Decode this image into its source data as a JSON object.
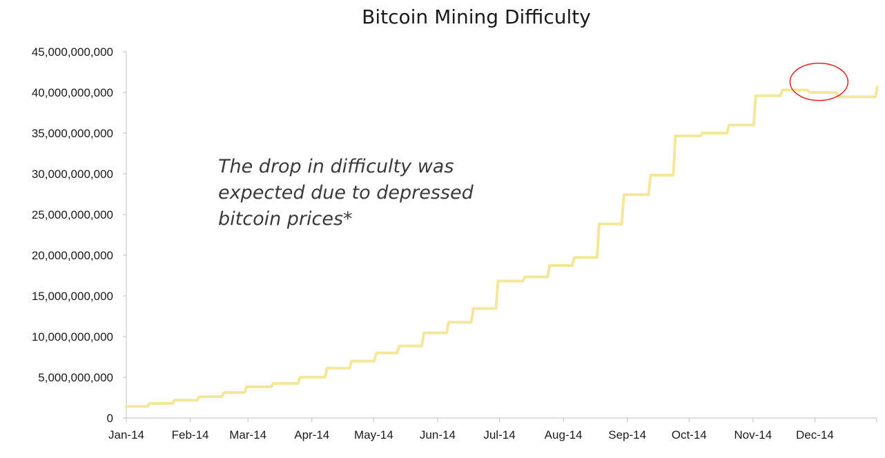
{
  "chart_data": {
    "type": "line",
    "title": "Bitcoin Mining Difficulty",
    "xlabel": "",
    "ylabel": "",
    "x_tick_labels": [
      "Jan-14",
      "Feb-14",
      "Mar-14",
      "Apr-14",
      "May-14",
      "Jun-14",
      "Jul-14",
      "Aug-14",
      "Sep-14",
      "Oct-14",
      "Nov-14",
      "Dec-14"
    ],
    "y_tick_labels": [
      "0",
      "5,000,000,000",
      "10,000,000,000",
      "15,000,000,000",
      "20,000,000,000",
      "25,000,000,000",
      "30,000,000,000",
      "35,000,000,000",
      "40,000,000,000",
      "45,000,000,000"
    ],
    "ylim": [
      0,
      45000000000
    ],
    "xlim": [
      "2014-01-01",
      "2014-12-31"
    ],
    "grid": false,
    "series": [
      {
        "color": "#f5e79a",
        "style": "step",
        "points": [
          [
            "2014-01-01",
            1420000000
          ],
          [
            "2014-01-12",
            1790000000
          ],
          [
            "2014-01-24",
            2190000000
          ],
          [
            "2014-02-05",
            2620000000
          ],
          [
            "2014-02-17",
            3130000000
          ],
          [
            "2014-02-28",
            3820000000
          ],
          [
            "2014-03-13",
            4250000000
          ],
          [
            "2014-03-26",
            5010000000
          ],
          [
            "2014-04-08",
            6120000000
          ],
          [
            "2014-04-20",
            6980000000
          ],
          [
            "2014-05-02",
            8000000000
          ],
          [
            "2014-05-13",
            8850000000
          ],
          [
            "2014-05-25",
            10460000000
          ],
          [
            "2014-06-06",
            11760000000
          ],
          [
            "2014-06-18",
            13460000000
          ],
          [
            "2014-06-30",
            16820000000
          ],
          [
            "2014-07-13",
            17340000000
          ],
          [
            "2014-07-25",
            18740000000
          ],
          [
            "2014-08-06",
            19730000000
          ],
          [
            "2014-08-18",
            23840000000
          ],
          [
            "2014-08-30",
            27430000000
          ],
          [
            "2014-09-12",
            29830000000
          ],
          [
            "2014-09-24",
            34660000000
          ],
          [
            "2014-10-07",
            35000000000
          ],
          [
            "2014-10-20",
            35990000000
          ],
          [
            "2014-11-02",
            39600000000
          ],
          [
            "2014-11-15",
            40300000000
          ],
          [
            "2014-11-28",
            40000000000
          ],
          [
            "2014-12-12",
            39460000000
          ],
          [
            "2014-12-25",
            39460000000
          ],
          [
            "2014-12-31",
            40640000000
          ]
        ]
      }
    ],
    "annotations": [
      {
        "text_lines": [
          "The drop in difficulty was",
          "expected due to depressed",
          "bitcoin prices*"
        ]
      }
    ],
    "highlight_ellipse": {
      "color": "#e0201b",
      "x_center": "2014-12-03",
      "y_center": 41300000000
    }
  }
}
